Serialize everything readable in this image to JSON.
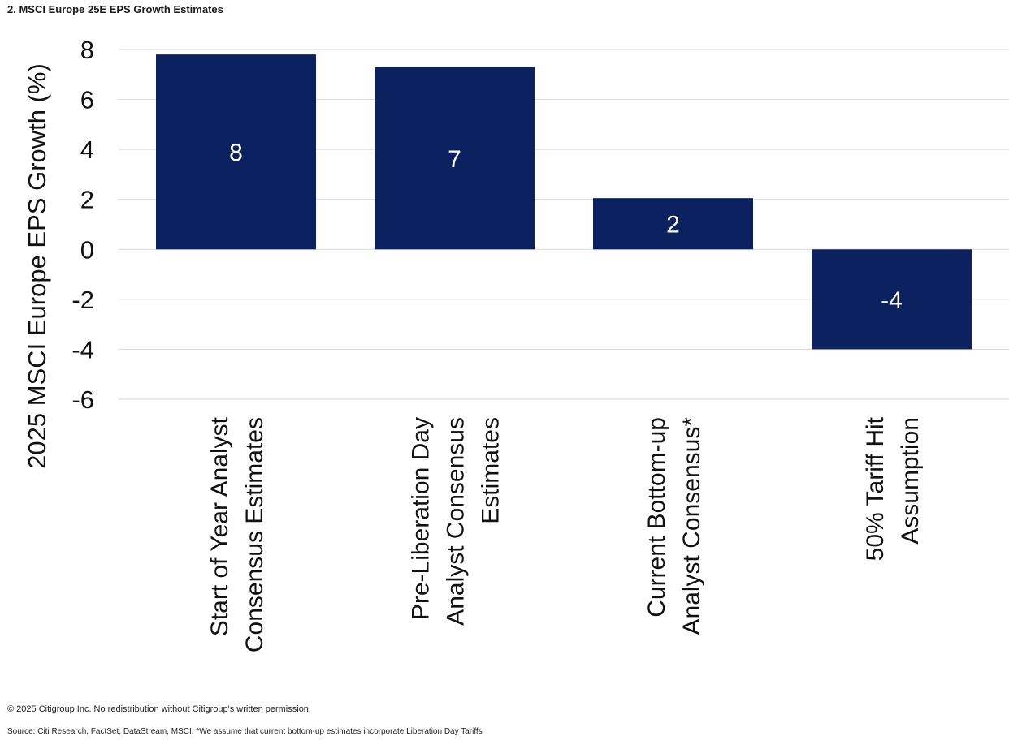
{
  "title": "2. MSCI Europe 25E EPS Growth Estimates",
  "colors": {
    "bar": "#0b2160",
    "grid": "#d9d9d9",
    "label_on_bar": "#ffffff"
  },
  "chart_data": {
    "type": "bar",
    "categories": [
      [
        "Start of Year Analyst",
        "Consensus Estimates"
      ],
      [
        "Pre-Liberation Day",
        "Analyst Consensus",
        "Estimates"
      ],
      [
        "Current Bottom-up",
        "Analyst Consensus*"
      ],
      [
        "50% Tariff Hit",
        "Assumption"
      ]
    ],
    "values": [
      7.8,
      7.3,
      2.05,
      -4.0
    ],
    "data_labels": [
      "8",
      "7",
      "2",
      "-4"
    ],
    "ylabel": "2025 MSCI Europe EPS Growth (%)",
    "xlabel": "",
    "ylim": [
      -6,
      8
    ],
    "yticks": [
      8,
      6,
      4,
      2,
      0,
      -2,
      -4,
      -6
    ],
    "grid": true,
    "legend": "none"
  },
  "footer": {
    "copyright": "© 2025 Citigroup Inc. No redistribution without Citigroup's written permission.",
    "source": "Source: Citi Research, FactSet, DataStream, MSCI, *We assume that current bottom-up estimates incorporate Liberation Day Tariffs"
  }
}
